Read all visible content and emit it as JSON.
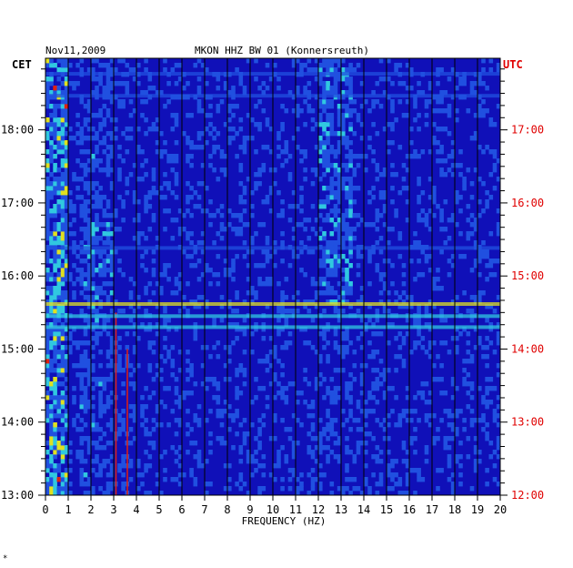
{
  "chart_data": {
    "type": "heatmap",
    "title": "MKON HHZ BW 01 (Konnersreuth)",
    "date": "Nov11,2009",
    "left_zone": "CET",
    "right_zone": "UTC",
    "xlabel": "FREQUENCY (HZ)",
    "xlim": [
      0,
      20
    ],
    "x_ticks": [
      "0",
      "1",
      "2",
      "3",
      "4",
      "5",
      "6",
      "7",
      "8",
      "9",
      "10",
      "11",
      "12",
      "13",
      "14",
      "15",
      "16",
      "17",
      "18",
      "19",
      "20"
    ],
    "y_ticks_left": [
      "13:00",
      "14:00",
      "15:00",
      "16:00",
      "17:00",
      "18:00"
    ],
    "y_ticks_right": [
      "12:00",
      "13:00",
      "14:00",
      "15:00",
      "16:00",
      "17:00"
    ],
    "y_range_cet_hours": [
      13.0,
      18.98
    ],
    "colors": {
      "background": "#1010b8",
      "low": "#2050e0",
      "mid": "#30c8e0",
      "high": "#e0e020",
      "peak": "#e02010",
      "utc_label": "#e00000"
    },
    "bands": [
      {
        "freq_hz": [
          0.0,
          1.0
        ],
        "level": "high",
        "note": "strong low-frequency noise throughout"
      },
      {
        "freq_hz": [
          1.5,
          3.0
        ],
        "level": "mid",
        "note": "broadband energy, strongest 15:30-16:40 CET"
      },
      {
        "freq_hz": [
          12.0,
          13.5
        ],
        "level": "mid",
        "note": "band active after 15:40 CET"
      },
      {
        "freq_hz": [
          3.05,
          3.15
        ],
        "level": "peak",
        "note": "narrow line 12:00-15:30 CET"
      },
      {
        "freq_hz": [
          3.55,
          3.65
        ],
        "level": "peak",
        "note": "narrow line 12:00-15:00 CET"
      }
    ],
    "events_cet": [
      {
        "time": "15:37",
        "level": "high",
        "note": "horizontal line across all frequencies"
      },
      {
        "time": "15:27",
        "level": "mid"
      },
      {
        "time": "15:18",
        "level": "mid"
      },
      {
        "time": "16:23",
        "level": "low"
      },
      {
        "time": "18:28",
        "level": "low"
      },
      {
        "time": "18:46",
        "level": "low"
      }
    ]
  },
  "footer_mark": "*"
}
